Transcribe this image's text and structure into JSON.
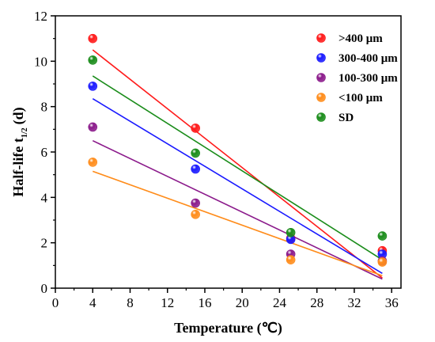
{
  "chart_data": {
    "type": "scatter",
    "xlabel": "Temperature (℃)",
    "ylabel": {
      "main": "Half-life t",
      "sub": "1/2",
      "unit": "(d)"
    },
    "xlim": [
      0,
      37
    ],
    "ylim": [
      0,
      12
    ],
    "x_ticks": [
      "0",
      "4",
      "8",
      "12",
      "16",
      "20",
      "24",
      "28",
      "32",
      "36"
    ],
    "y_ticks": [
      "0",
      "2",
      "4",
      "6",
      "8",
      "10",
      "12"
    ],
    "grid": false,
    "legend_position": "top-right",
    "series": [
      {
        "name": ">400 μm",
        "color": "#ff1a1a",
        "points": [
          [
            4,
            11.0
          ],
          [
            15,
            7.05
          ],
          [
            25.2,
            2.2
          ],
          [
            35,
            1.65
          ]
        ],
        "fit": [
          [
            4,
            10.5
          ],
          [
            35,
            0.45
          ]
        ]
      },
      {
        "name": "300-400 μm",
        "color": "#1a1aff",
        "points": [
          [
            4,
            8.9
          ],
          [
            15,
            5.25
          ],
          [
            25.2,
            2.15
          ],
          [
            35,
            1.5
          ]
        ],
        "fit": [
          [
            4,
            8.35
          ],
          [
            35,
            0.65
          ]
        ]
      },
      {
        "name": "100-300 μm",
        "color": "#8b1a8b",
        "points": [
          [
            4,
            7.1
          ],
          [
            15,
            3.75
          ],
          [
            25.2,
            1.5
          ],
          [
            35,
            1.2
          ]
        ],
        "fit": [
          [
            4,
            6.5
          ],
          [
            35,
            0.4
          ]
        ]
      },
      {
        "name": "<100 μm",
        "color": "#ff8c1a",
        "points": [
          [
            4,
            5.55
          ],
          [
            15,
            3.25
          ],
          [
            25.2,
            1.25
          ],
          [
            35,
            1.15
          ]
        ],
        "fit": [
          [
            4,
            5.15
          ],
          [
            35,
            0.55
          ]
        ]
      },
      {
        "name": "SD",
        "color": "#1a8c1a",
        "points": [
          [
            4,
            10.05
          ],
          [
            15,
            5.95
          ],
          [
            25.2,
            2.45
          ],
          [
            35,
            2.3
          ]
        ],
        "fit": [
          [
            4,
            9.35
          ],
          [
            35,
            1.25
          ]
        ]
      }
    ]
  }
}
